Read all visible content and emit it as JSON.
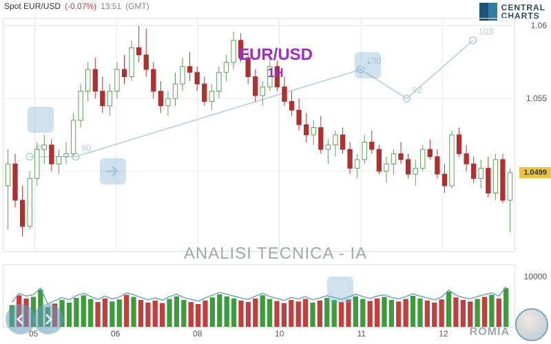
{
  "header": {
    "spot": "Spot EUR/USD",
    "pct": "(-0.07%)",
    "time": "13:51",
    "tz": "(GMT)"
  },
  "branding": {
    "line1": "CENTRAL",
    "line2": "CHARTS",
    "bottom": "ROMIA"
  },
  "pair": {
    "symbol": "EUR/USD",
    "timeframe": "1H"
  },
  "subtitle": "ANALISI TECNICA - IA",
  "chart": {
    "type": "candlestick",
    "ylim": [
      1.0445,
      1.0605
    ],
    "ytick_labels": [
      1.06,
      1.055,
      1.05
    ],
    "current_price": "1.0499",
    "background": "#ffffff",
    "grid_color": "#e8e8e8",
    "up_color": "#5aa05a",
    "down_color": "#b03030",
    "overlay_color": "#bdd6e2",
    "overlay_points": [
      {
        "x": 0.05,
        "y": 1.051,
        "label": "89"
      },
      {
        "x": 0.14,
        "y": 1.051,
        "label": "90"
      },
      {
        "x": 0.7,
        "y": 1.057,
        "label": "100"
      },
      {
        "x": 0.79,
        "y": 1.055,
        "label": "92"
      },
      {
        "x": 0.92,
        "y": 1.059,
        "label": "103"
      }
    ],
    "candles": [
      {
        "o": 1.049,
        "h": 1.0515,
        "l": 1.046,
        "c": 1.0505
      },
      {
        "o": 1.0505,
        "h": 1.0512,
        "l": 1.0475,
        "c": 1.048
      },
      {
        "o": 1.048,
        "h": 1.049,
        "l": 1.0455,
        "c": 1.0462
      },
      {
        "o": 1.0462,
        "h": 1.05,
        "l": 1.046,
        "c": 1.0495
      },
      {
        "o": 1.0495,
        "h": 1.052,
        "l": 1.049,
        "c": 1.0515
      },
      {
        "o": 1.0515,
        "h": 1.0525,
        "l": 1.0505,
        "c": 1.0518
      },
      {
        "o": 1.0518,
        "h": 1.0522,
        "l": 1.05,
        "c": 1.0505
      },
      {
        "o": 1.0505,
        "h": 1.0515,
        "l": 1.0498,
        "c": 1.051
      },
      {
        "o": 1.051,
        "h": 1.052,
        "l": 1.0505,
        "c": 1.0512
      },
      {
        "o": 1.0512,
        "h": 1.054,
        "l": 1.051,
        "c": 1.0535
      },
      {
        "o": 1.0535,
        "h": 1.056,
        "l": 1.053,
        "c": 1.0555
      },
      {
        "o": 1.0555,
        "h": 1.0575,
        "l": 1.0548,
        "c": 1.057
      },
      {
        "o": 1.057,
        "h": 1.0578,
        "l": 1.055,
        "c": 1.0555
      },
      {
        "o": 1.0555,
        "h": 1.0565,
        "l": 1.054,
        "c": 1.0545
      },
      {
        "o": 1.0545,
        "h": 1.056,
        "l": 1.0538,
        "c": 1.0555
      },
      {
        "o": 1.0555,
        "h": 1.0575,
        "l": 1.055,
        "c": 1.057
      },
      {
        "o": 1.057,
        "h": 1.058,
        "l": 1.056,
        "c": 1.0565
      },
      {
        "o": 1.0565,
        "h": 1.059,
        "l": 1.0562,
        "c": 1.0585
      },
      {
        "o": 1.0585,
        "h": 1.06,
        "l": 1.0575,
        "c": 1.058
      },
      {
        "o": 1.058,
        "h": 1.0598,
        "l": 1.0565,
        "c": 1.057
      },
      {
        "o": 1.057,
        "h": 1.0575,
        "l": 1.055,
        "c": 1.0555
      },
      {
        "o": 1.0555,
        "h": 1.0562,
        "l": 1.054,
        "c": 1.0545
      },
      {
        "o": 1.0545,
        "h": 1.0555,
        "l": 1.0538,
        "c": 1.055
      },
      {
        "o": 1.055,
        "h": 1.0568,
        "l": 1.0545,
        "c": 1.056
      },
      {
        "o": 1.056,
        "h": 1.0578,
        "l": 1.0555,
        "c": 1.0572
      },
      {
        "o": 1.0572,
        "h": 1.0582,
        "l": 1.0562,
        "c": 1.0568
      },
      {
        "o": 1.0568,
        "h": 1.0572,
        "l": 1.0555,
        "c": 1.056
      },
      {
        "o": 1.056,
        "h": 1.0565,
        "l": 1.0545,
        "c": 1.0548
      },
      {
        "o": 1.0548,
        "h": 1.056,
        "l": 1.0542,
        "c": 1.0555
      },
      {
        "o": 1.0555,
        "h": 1.0572,
        "l": 1.055,
        "c": 1.0568
      },
      {
        "o": 1.0568,
        "h": 1.058,
        "l": 1.0562,
        "c": 1.0575
      },
      {
        "o": 1.0575,
        "h": 1.0596,
        "l": 1.057,
        "c": 1.059
      },
      {
        "o": 1.059,
        "h": 1.0595,
        "l": 1.0575,
        "c": 1.0578
      },
      {
        "o": 1.0578,
        "h": 1.0582,
        "l": 1.056,
        "c": 1.0565
      },
      {
        "o": 1.0565,
        "h": 1.057,
        "l": 1.0548,
        "c": 1.0552
      },
      {
        "o": 1.0552,
        "h": 1.0562,
        "l": 1.0545,
        "c": 1.0558
      },
      {
        "o": 1.0558,
        "h": 1.0578,
        "l": 1.0555,
        "c": 1.0572
      },
      {
        "o": 1.0572,
        "h": 1.0576,
        "l": 1.0555,
        "c": 1.0558
      },
      {
        "o": 1.0558,
        "h": 1.0565,
        "l": 1.0545,
        "c": 1.0548
      },
      {
        "o": 1.0548,
        "h": 1.0555,
        "l": 1.0538,
        "c": 1.0542
      },
      {
        "o": 1.0542,
        "h": 1.055,
        "l": 1.0528,
        "c": 1.0532
      },
      {
        "o": 1.0532,
        "h": 1.054,
        "l": 1.052,
        "c": 1.0525
      },
      {
        "o": 1.0525,
        "h": 1.0535,
        "l": 1.0518,
        "c": 1.053
      },
      {
        "o": 1.053,
        "h": 1.0538,
        "l": 1.0512,
        "c": 1.0515
      },
      {
        "o": 1.0515,
        "h": 1.0522,
        "l": 1.0505,
        "c": 1.0518
      },
      {
        "o": 1.0518,
        "h": 1.0528,
        "l": 1.051,
        "c": 1.0525
      },
      {
        "o": 1.0525,
        "h": 1.053,
        "l": 1.0512,
        "c": 1.0515
      },
      {
        "o": 1.0515,
        "h": 1.052,
        "l": 1.0498,
        "c": 1.0502
      },
      {
        "o": 1.0502,
        "h": 1.0512,
        "l": 1.0495,
        "c": 1.0508
      },
      {
        "o": 1.0508,
        "h": 1.0525,
        "l": 1.0505,
        "c": 1.052
      },
      {
        "o": 1.052,
        "h": 1.0528,
        "l": 1.0512,
        "c": 1.0515
      },
      {
        "o": 1.0515,
        "h": 1.0518,
        "l": 1.0498,
        "c": 1.05
      },
      {
        "o": 1.05,
        "h": 1.051,
        "l": 1.0492,
        "c": 1.0505
      },
      {
        "o": 1.0505,
        "h": 1.0515,
        "l": 1.0498,
        "c": 1.0512
      },
      {
        "o": 1.0512,
        "h": 1.052,
        "l": 1.0505,
        "c": 1.0508
      },
      {
        "o": 1.0508,
        "h": 1.0512,
        "l": 1.0495,
        "c": 1.0498
      },
      {
        "o": 1.0498,
        "h": 1.0508,
        "l": 1.049,
        "c": 1.0502
      },
      {
        "o": 1.0502,
        "h": 1.0518,
        "l": 1.05,
        "c": 1.0515
      },
      {
        "o": 1.0515,
        "h": 1.0522,
        "l": 1.0508,
        "c": 1.051
      },
      {
        "o": 1.051,
        "h": 1.0515,
        "l": 1.0495,
        "c": 1.0498
      },
      {
        "o": 1.0498,
        "h": 1.0505,
        "l": 1.0485,
        "c": 1.049
      },
      {
        "o": 1.049,
        "h": 1.0528,
        "l": 1.0488,
        "c": 1.0525
      },
      {
        "o": 1.0525,
        "h": 1.053,
        "l": 1.051,
        "c": 1.0512
      },
      {
        "o": 1.0512,
        "h": 1.0518,
        "l": 1.05,
        "c": 1.0505
      },
      {
        "o": 1.0505,
        "h": 1.051,
        "l": 1.0492,
        "c": 1.0495
      },
      {
        "o": 1.0495,
        "h": 1.0508,
        "l": 1.0488,
        "c": 1.0502
      },
      {
        "o": 1.0502,
        "h": 1.051,
        "l": 1.0482,
        "c": 1.0485
      },
      {
        "o": 1.0485,
        "h": 1.0512,
        "l": 1.048,
        "c": 1.0508
      },
      {
        "o": 1.0508,
        "h": 1.0512,
        "l": 1.0478,
        "c": 1.048
      },
      {
        "o": 1.048,
        "h": 1.0502,
        "l": 1.0458,
        "c": 1.0499
      }
    ]
  },
  "volume": {
    "ylim": [
      0,
      12000
    ],
    "ytick": "10000",
    "line_color": "#6aa3c0",
    "up_color": "#3c9c3c",
    "down_color": "#c04040",
    "bars": [
      4200,
      6100,
      5500,
      5800,
      7200,
      3800,
      4500,
      5200,
      4700,
      5600,
      6100,
      5400,
      4800,
      5500,
      4900,
      5300,
      6200,
      5800,
      5200,
      4700,
      5100,
      4600,
      5400,
      5900,
      5200,
      4800,
      4400,
      5100,
      5700,
      6300,
      5900,
      5500,
      5100,
      4800,
      5500,
      6100,
      5400,
      5000,
      4600,
      5200,
      4900,
      5400,
      4700,
      5100,
      5600,
      5200,
      4800,
      5300,
      5900,
      5400,
      5000,
      5500,
      5800,
      5200,
      4900,
      5400,
      6000,
      5500,
      5100,
      4700,
      5300,
      6800,
      5700,
      5200,
      4900,
      5400,
      5800,
      6200,
      5500,
      7500
    ]
  },
  "xaxis": {
    "labels": [
      {
        "pos": 0.06,
        "text": "05"
      },
      {
        "pos": 0.22,
        "text": "06"
      },
      {
        "pos": 0.38,
        "text": "08"
      },
      {
        "pos": 0.54,
        "text": "10"
      },
      {
        "pos": 0.7,
        "text": "11"
      },
      {
        "pos": 0.86,
        "text": "12"
      }
    ]
  }
}
